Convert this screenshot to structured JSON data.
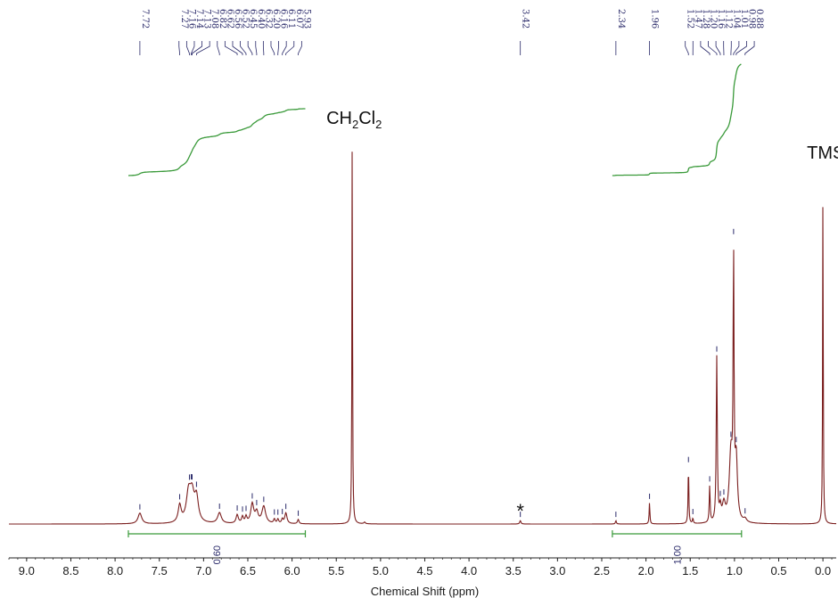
{
  "chart_data": {
    "type": "line",
    "title": "",
    "xlabel": "Chemical Shift (ppm)",
    "ylabel": "",
    "xlim": [
      9.2,
      -0.15
    ],
    "x_reversed": true,
    "ylim": [
      0,
      1
    ],
    "grid": false,
    "legend": "none",
    "colors": {
      "spectrum": "#7b1f1f",
      "integral": "#3a9a3a",
      "peak_label": "#2a2a6a",
      "peak_tick": "#2a2a6a"
    },
    "x_ticks": [
      {
        "v": 9.0,
        "label": "9.0"
      },
      {
        "v": 8.5,
        "label": "8.5"
      },
      {
        "v": 8.0,
        "label": "8.0"
      },
      {
        "v": 7.5,
        "label": "7.5"
      },
      {
        "v": 7.0,
        "label": "7.0"
      },
      {
        "v": 6.5,
        "label": "6.5"
      },
      {
        "v": 6.0,
        "label": "6.0"
      },
      {
        "v": 5.5,
        "label": "5.5"
      },
      {
        "v": 5.0,
        "label": "5.0"
      },
      {
        "v": 4.5,
        "label": "4.5"
      },
      {
        "v": 4.0,
        "label": "4.0"
      },
      {
        "v": 3.5,
        "label": "3.5"
      },
      {
        "v": 3.0,
        "label": "3.0"
      },
      {
        "v": 2.5,
        "label": "2.5"
      },
      {
        "v": 2.0,
        "label": "2.0"
      },
      {
        "v": 1.5,
        "label": "1.5"
      },
      {
        "v": 1.0,
        "label": "1.0"
      },
      {
        "v": 0.5,
        "label": "0.5"
      },
      {
        "v": 0.0,
        "label": "0.0"
      }
    ],
    "peak_groups": [
      [
        {
          "ppm": 7.72,
          "label": "7.72"
        }
      ],
      [
        {
          "ppm": 7.27,
          "label": "7.27"
        },
        {
          "ppm": 7.16,
          "label": "7.16"
        },
        {
          "ppm": 7.14,
          "label": "7.14"
        },
        {
          "ppm": 7.13,
          "label": "7.13"
        },
        {
          "ppm": 7.08,
          "label": "7.08"
        },
        {
          "ppm": 6.82,
          "label": "6.82"
        },
        {
          "ppm": 6.62,
          "label": "6.62"
        },
        {
          "ppm": 6.56,
          "label": "6.56"
        },
        {
          "ppm": 6.52,
          "label": "6.52"
        },
        {
          "ppm": 6.45,
          "label": "6.45"
        },
        {
          "ppm": 6.4,
          "label": "6.40"
        },
        {
          "ppm": 6.32,
          "label": "6.32"
        },
        {
          "ppm": 6.2,
          "label": "6.20"
        },
        {
          "ppm": 6.16,
          "label": "6.16"
        },
        {
          "ppm": 6.11,
          "label": "6.11"
        },
        {
          "ppm": 6.07,
          "label": "6.07"
        },
        {
          "ppm": 5.93,
          "label": "5.93"
        }
      ],
      [
        {
          "ppm": 3.42,
          "label": "3.42"
        }
      ],
      [
        {
          "ppm": 2.34,
          "label": "2.34"
        }
      ],
      [
        {
          "ppm": 1.96,
          "label": "1.96"
        }
      ],
      [
        {
          "ppm": 1.52,
          "label": "1.52"
        },
        {
          "ppm": 1.47,
          "label": "1.47"
        },
        {
          "ppm": 1.28,
          "label": "1.28"
        },
        {
          "ppm": 1.2,
          "label": "1.20"
        },
        {
          "ppm": 1.16,
          "label": "1.16"
        },
        {
          "ppm": 1.12,
          "label": "1.12"
        },
        {
          "ppm": 1.04,
          "label": "1.04"
        },
        {
          "ppm": 1.01,
          "label": "1.01"
        },
        {
          "ppm": 0.98,
          "label": "0.98"
        },
        {
          "ppm": 0.88,
          "label": "0.88"
        }
      ]
    ],
    "signals": [
      {
        "ppm": 7.72,
        "height": 0.025,
        "width": 0.025
      },
      {
        "ppm": 7.27,
        "height": 0.04,
        "width": 0.02
      },
      {
        "ppm": 7.17,
        "height": 0.065,
        "width": 0.03
      },
      {
        "ppm": 7.13,
        "height": 0.06,
        "width": 0.03
      },
      {
        "ppm": 7.08,
        "height": 0.055,
        "width": 0.025
      },
      {
        "ppm": 6.82,
        "height": 0.025,
        "width": 0.025
      },
      {
        "ppm": 6.62,
        "height": 0.02,
        "width": 0.015
      },
      {
        "ppm": 6.56,
        "height": 0.015,
        "width": 0.012
      },
      {
        "ppm": 6.52,
        "height": 0.015,
        "width": 0.012
      },
      {
        "ppm": 6.45,
        "height": 0.045,
        "width": 0.02
      },
      {
        "ppm": 6.4,
        "height": 0.025,
        "width": 0.02
      },
      {
        "ppm": 6.32,
        "height": 0.04,
        "width": 0.025
      },
      {
        "ppm": 6.2,
        "height": 0.01,
        "width": 0.01
      },
      {
        "ppm": 6.16,
        "height": 0.01,
        "width": 0.01
      },
      {
        "ppm": 6.11,
        "height": 0.01,
        "width": 0.01
      },
      {
        "ppm": 6.07,
        "height": 0.025,
        "width": 0.015
      },
      {
        "ppm": 5.93,
        "height": 0.01,
        "width": 0.01
      },
      {
        "ppm": 5.32,
        "height": 0.92,
        "width": 0.004
      },
      {
        "ppm": 5.18,
        "height": 0.004,
        "width": 0.01
      },
      {
        "ppm": 3.42,
        "height": 0.008,
        "width": 0.008
      },
      {
        "ppm": 2.34,
        "height": 0.008,
        "width": 0.006
      },
      {
        "ppm": 1.96,
        "height": 0.05,
        "width": 0.005
      },
      {
        "ppm": 1.52,
        "height": 0.135,
        "width": 0.005
      },
      {
        "ppm": 1.47,
        "height": 0.012,
        "width": 0.006
      },
      {
        "ppm": 1.28,
        "height": 0.085,
        "width": 0.006
      },
      {
        "ppm": 1.2,
        "height": 0.385,
        "width": 0.007
      },
      {
        "ppm": 1.16,
        "height": 0.03,
        "width": 0.012
      },
      {
        "ppm": 1.12,
        "height": 0.04,
        "width": 0.02
      },
      {
        "ppm": 1.04,
        "height": 0.16,
        "width": 0.022
      },
      {
        "ppm": 1.01,
        "height": 0.58,
        "width": 0.006
      },
      {
        "ppm": 0.98,
        "height": 0.14,
        "width": 0.016
      },
      {
        "ppm": 0.88,
        "height": 0.008,
        "width": 0.02
      },
      {
        "ppm": 0.0,
        "height": 0.8,
        "width": 0.004
      }
    ],
    "integrals": [
      {
        "from": 7.85,
        "to": 5.85,
        "value": "0.60"
      },
      {
        "from": 2.38,
        "to": 0.92,
        "value": "1.00"
      }
    ],
    "annotations": [
      {
        "ppm": 5.32,
        "text": "CH",
        "sub": "2",
        "text2": "Cl",
        "sub2": "2"
      },
      {
        "ppm": 0.0,
        "text": "TMS"
      },
      {
        "ppm": 3.42,
        "text": "*"
      }
    ]
  }
}
